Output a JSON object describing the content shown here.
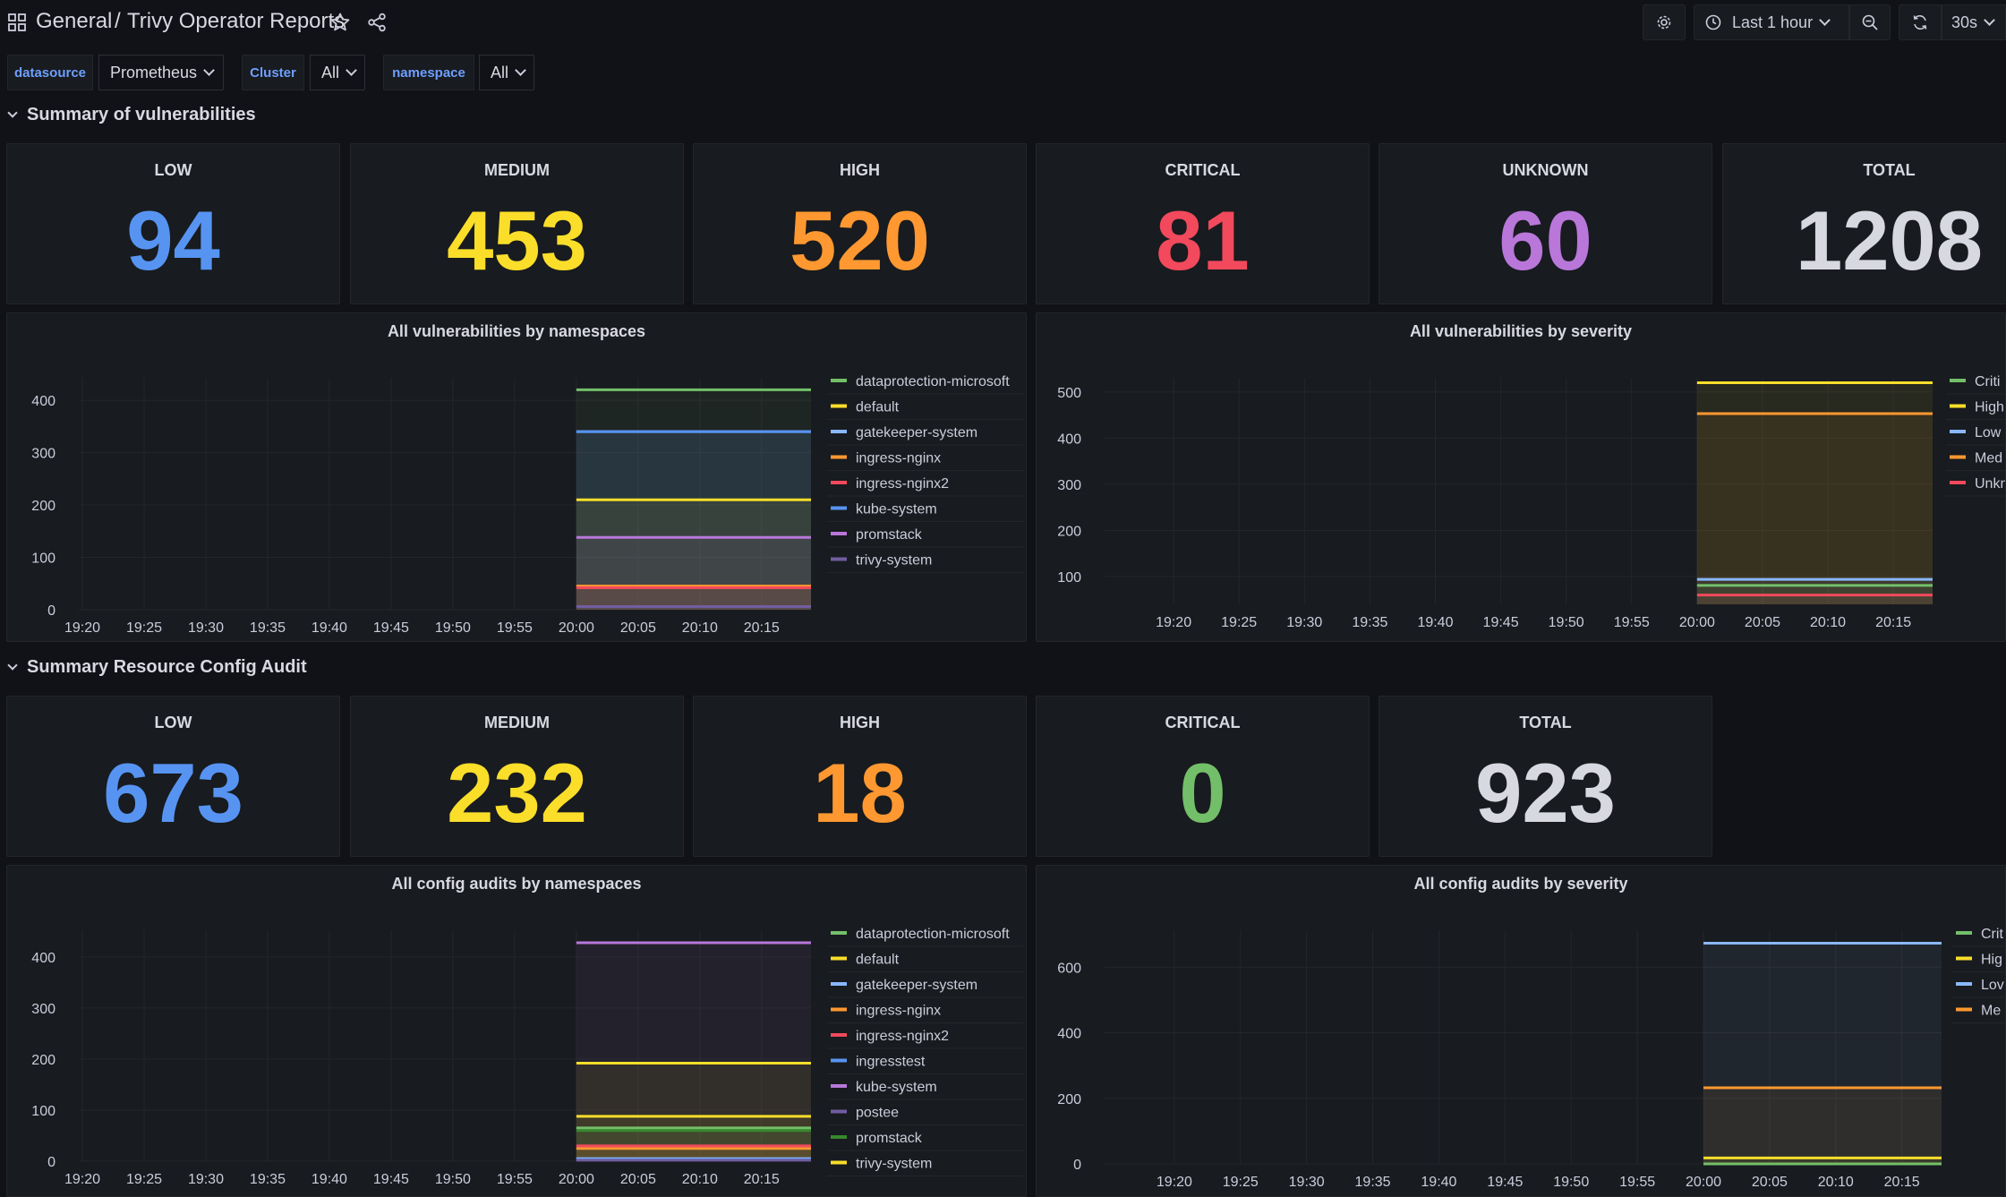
{
  "header": {
    "folder": "General",
    "separator": "/",
    "title": "Trivy Operator Reports",
    "time_range": "Last 1 hour",
    "refresh": "30s"
  },
  "variables": [
    {
      "label": "datasource",
      "value": "Prometheus"
    },
    {
      "label": "Cluster",
      "value": "All"
    },
    {
      "label": "namespace",
      "value": "All"
    }
  ],
  "rows": {
    "vulnerabilities": "Summary of vulnerabilities",
    "config_audit": "Summary Resource Config Audit"
  },
  "stats_vuln": [
    {
      "title": "LOW",
      "value": "94",
      "color": "#5794f2"
    },
    {
      "title": "MEDIUM",
      "value": "453",
      "color": "#fade2a"
    },
    {
      "title": "HIGH",
      "value": "520",
      "color": "#ff9830"
    },
    {
      "title": "CRITICAL",
      "value": "81",
      "color": "#f2495c"
    },
    {
      "title": "UNKNOWN",
      "value": "60",
      "color": "#b877d9"
    },
    {
      "title": "TOTAL",
      "value": "1208",
      "color": "#d8d9e0"
    }
  ],
  "stats_config": [
    {
      "title": "LOW",
      "value": "673",
      "color": "#5794f2"
    },
    {
      "title": "MEDIUM",
      "value": "232",
      "color": "#fade2a"
    },
    {
      "title": "HIGH",
      "value": "18",
      "color": "#ff9830"
    },
    {
      "title": "CRITICAL",
      "value": "0",
      "color": "#73bf69"
    },
    {
      "title": "TOTAL",
      "value": "923",
      "color": "#d8d9e0"
    }
  ],
  "chart_data": [
    {
      "type": "line",
      "title": "All vulnerabilities by namespaces",
      "x": [
        "19:20",
        "19:25",
        "19:30",
        "19:35",
        "19:40",
        "19:45",
        "19:50",
        "19:55",
        "20:00",
        "20:05",
        "20:10",
        "20:15"
      ],
      "x_start": "19:20",
      "x_end": "20:19",
      "ylim": [
        0,
        460
      ],
      "yticks": [
        0,
        100,
        200,
        300,
        400
      ],
      "data_start": "20:00",
      "legend_position": "right",
      "series": [
        {
          "name": "dataprotection-microsoft",
          "color": "#73bf69",
          "value": 420
        },
        {
          "name": "default",
          "color": "#fade2a",
          "value": 210
        },
        {
          "name": "gatekeeper-system",
          "color": "#8ab8ff",
          "value": 340
        },
        {
          "name": "ingress-nginx",
          "color": "#ff9830",
          "value": 45
        },
        {
          "name": "ingress-nginx2",
          "color": "#f2495c",
          "value": 42
        },
        {
          "name": "kube-system",
          "color": "#5794f2",
          "value": 340
        },
        {
          "name": "promstack",
          "color": "#b877d9",
          "value": 138
        },
        {
          "name": "trivy-system",
          "color": "#705da0",
          "value": 6
        }
      ]
    },
    {
      "type": "line",
      "title": "All vulnerabilities by severity",
      "x": [
        "19:20",
        "19:25",
        "19:30",
        "19:35",
        "19:40",
        "19:45",
        "19:50",
        "19:55",
        "20:00",
        "20:05",
        "20:10",
        "20:15"
      ],
      "x_start": "19:15",
      "x_end": "20:18",
      "ylim": [
        40,
        550
      ],
      "yticks": [
        100,
        200,
        300,
        400,
        500
      ],
      "data_start": "20:00",
      "legend_position": "right",
      "series": [
        {
          "name": "Critical",
          "legend_text": "Criti",
          "color": "#73bf69",
          "value": 81
        },
        {
          "name": "High",
          "legend_text": "High",
          "color": "#fade2a",
          "value": 520
        },
        {
          "name": "Low",
          "legend_text": "Low",
          "color": "#8ab8ff",
          "value": 94
        },
        {
          "name": "Medium",
          "legend_text": "Med",
          "color": "#ff9830",
          "value": 453
        },
        {
          "name": "Unknown",
          "legend_text": "Unkn",
          "color": "#f2495c",
          "value": 60
        }
      ]
    },
    {
      "type": "line",
      "title": "All config audits by namespaces",
      "x": [
        "19:20",
        "19:25",
        "19:30",
        "19:35",
        "19:40",
        "19:45",
        "19:50",
        "19:55",
        "20:00",
        "20:05",
        "20:10",
        "20:15"
      ],
      "x_start": "19:20",
      "x_end": "20:19",
      "ylim": [
        0,
        470
      ],
      "yticks": [
        0,
        100,
        200,
        300,
        400
      ],
      "data_start": "20:00",
      "legend_position": "right",
      "series": [
        {
          "name": "dataprotection-microsoft",
          "color": "#73bf69",
          "value": 65
        },
        {
          "name": "default",
          "color": "#fade2a",
          "value": 192
        },
        {
          "name": "gatekeeper-system",
          "color": "#8ab8ff",
          "value": 5
        },
        {
          "name": "ingress-nginx",
          "color": "#ff9830",
          "value": 25
        },
        {
          "name": "ingress-nginx2",
          "color": "#f2495c",
          "value": 30
        },
        {
          "name": "ingresstest",
          "color": "#5794f2",
          "value": 3
        },
        {
          "name": "kube-system",
          "color": "#b877d9",
          "value": 428
        },
        {
          "name": "postee",
          "color": "#705da0",
          "value": 2
        },
        {
          "name": "promstack",
          "color": "#37872d",
          "value": 60
        },
        {
          "name": "trivy-system",
          "color": "#fade2a",
          "value": 88
        }
      ]
    },
    {
      "type": "line",
      "title": "All config audits by severity",
      "x": [
        "19:20",
        "19:25",
        "19:30",
        "19:35",
        "19:40",
        "19:45",
        "19:50",
        "19:55",
        "20:00",
        "20:05",
        "20:10",
        "20:15"
      ],
      "x_start": "19:15",
      "x_end": "20:18",
      "ylim": [
        0,
        740
      ],
      "yticks": [
        0,
        200,
        400,
        600
      ],
      "data_start": "20:00",
      "legend_position": "right",
      "series": [
        {
          "name": "Critical",
          "legend_text": "Crit",
          "color": "#73bf69",
          "value": 0
        },
        {
          "name": "High",
          "legend_text": "Hig",
          "color": "#fade2a",
          "value": 18
        },
        {
          "name": "Low",
          "legend_text": "Lov",
          "color": "#8ab8ff",
          "value": 673
        },
        {
          "name": "Medium",
          "legend_text": "Me",
          "color": "#ff9830",
          "value": 232
        }
      ]
    }
  ]
}
